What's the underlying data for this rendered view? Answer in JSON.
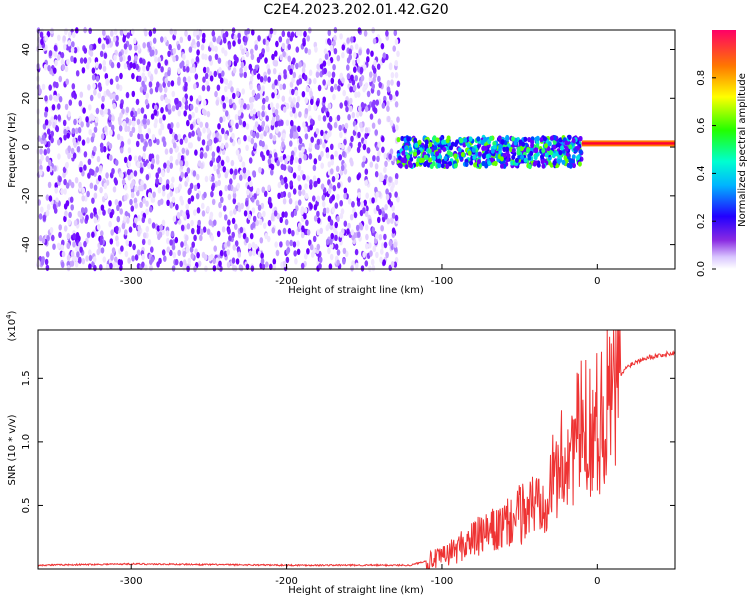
{
  "chart_data": [
    {
      "type": "heatmap",
      "title": "C2E4.2023.202.01.42.G20",
      "xlabel": "Height of straight line (km)",
      "ylabel": "Frequency (Hz)",
      "xlim": [
        -360,
        50
      ],
      "ylim": [
        -50,
        48
      ],
      "x_ticks": [
        "-300",
        "-200",
        "-100",
        "0"
      ],
      "y_ticks": [
        "-40",
        "-20",
        "0",
        "20",
        "40"
      ],
      "colorbar": {
        "label": "Normalized spectral amplitude",
        "range": [
          0,
          1
        ],
        "ticks": [
          "0.0",
          "0.2",
          "0.4",
          "0.6",
          "0.8"
        ]
      },
      "description_points": [
        {
          "x": -360,
          "x_end": -130,
          "freq_min": -50,
          "freq_max": 48,
          "amplitude": 0.1
        },
        {
          "x": -130,
          "x_end": -10,
          "freq_min": -5,
          "freq_max": 8,
          "amplitude": 0.35
        },
        {
          "x": -10,
          "x_end": 50,
          "freq_min": 0,
          "freq_max": 2,
          "amplitude": 0.9
        }
      ]
    },
    {
      "type": "line",
      "xlabel": "Height of straight line (km)",
      "ylabel": "SNR (10 * v/v)",
      "y_multiplier": "(x10",
      "y_multiplier_exp": "4",
      "y_multiplier_close": ")",
      "xlim": [
        -360,
        50
      ],
      "ylim": [
        0,
        1.88
      ],
      "x_ticks": [
        "-300",
        "-200",
        "-100",
        "0"
      ],
      "y_ticks": [
        "0.5",
        "1.0",
        "1.5"
      ],
      "color": "#ee3333",
      "x": [
        -360,
        -300,
        -200,
        -120,
        -100,
        -80,
        -60,
        -50,
        -40,
        -30,
        -20,
        -10,
        0,
        10,
        20,
        30,
        40,
        50
      ],
      "y": [
        0.03,
        0.04,
        0.03,
        0.03,
        0.1,
        0.25,
        0.35,
        0.45,
        0.55,
        0.7,
        0.95,
        1.15,
        1.2,
        1.45,
        1.6,
        1.66,
        1.68,
        1.7
      ]
    }
  ]
}
